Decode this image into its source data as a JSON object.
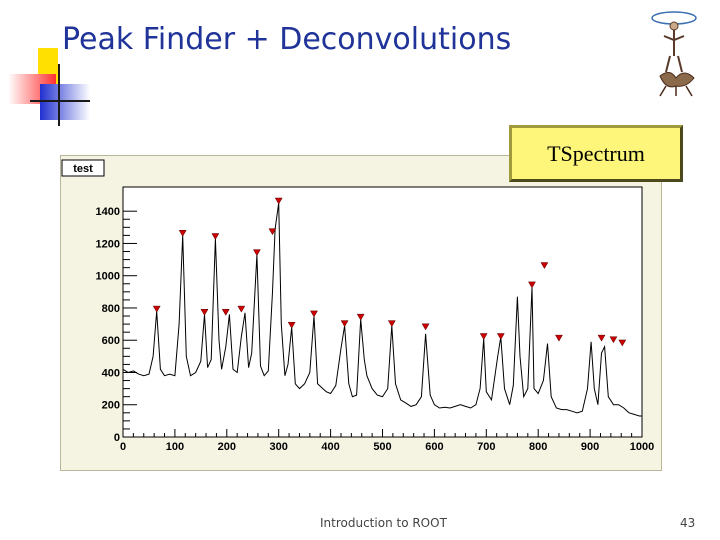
{
  "slide": {
    "title": "Peak Finder + Deconvolutions",
    "callout": "TSpectrum",
    "footer_text": "Introduction to ROOT",
    "page_number": "43"
  },
  "colors": {
    "title": "#1f3399",
    "deco_yellow": "#ffe000",
    "deco_red": "#ff2020",
    "deco_blue": "#2030d0",
    "chart_background": "#f5f4e3",
    "plot_background": "#ffffff",
    "marker": "#cc0000"
  },
  "logo": {
    "icon": "root-logo-figure-icon"
  },
  "chart_data": {
    "type": "line",
    "title": "test",
    "xlim": [
      0,
      1000
    ],
    "ylim": [
      0,
      1550
    ],
    "x_ticks": [
      "0",
      "100",
      "200",
      "300",
      "400",
      "500",
      "600",
      "700",
      "800",
      "900",
      "1000"
    ],
    "y_ticks": [
      "0",
      "200",
      "400",
      "600",
      "800",
      "1000",
      "1200",
      "1400"
    ],
    "series": [
      {
        "points": [
          [
            0,
            420
          ],
          [
            10,
            400
          ],
          [
            20,
            410
          ],
          [
            30,
            390
          ],
          [
            40,
            380
          ],
          [
            50,
            390
          ],
          [
            58,
            500
          ],
          [
            65,
            780
          ],
          [
            72,
            420
          ],
          [
            80,
            380
          ],
          [
            90,
            390
          ],
          [
            100,
            380
          ],
          [
            108,
            700
          ],
          [
            115,
            1250
          ],
          [
            122,
            500
          ],
          [
            130,
            380
          ],
          [
            140,
            400
          ],
          [
            150,
            470
          ],
          [
            157,
            760
          ],
          [
            163,
            430
          ],
          [
            170,
            480
          ],
          [
            178,
            1230
          ],
          [
            185,
            600
          ],
          [
            190,
            420
          ],
          [
            198,
            560
          ],
          [
            205,
            760
          ],
          [
            212,
            420
          ],
          [
            220,
            400
          ],
          [
            228,
            620
          ],
          [
            235,
            770
          ],
          [
            242,
            430
          ],
          [
            248,
            520
          ],
          [
            258,
            1130
          ],
          [
            265,
            440
          ],
          [
            272,
            380
          ],
          [
            280,
            410
          ],
          [
            288,
            900
          ],
          [
            293,
            1290
          ],
          [
            300,
            1450
          ],
          [
            305,
            700
          ],
          [
            312,
            380
          ],
          [
            318,
            450
          ],
          [
            325,
            680
          ],
          [
            332,
            330
          ],
          [
            340,
            300
          ],
          [
            350,
            330
          ],
          [
            360,
            400
          ],
          [
            368,
            750
          ],
          [
            375,
            330
          ],
          [
            385,
            300
          ],
          [
            392,
            280
          ],
          [
            400,
            270
          ],
          [
            410,
            320
          ],
          [
            420,
            550
          ],
          [
            427,
            690
          ],
          [
            435,
            330
          ],
          [
            442,
            250
          ],
          [
            450,
            260
          ],
          [
            458,
            730
          ],
          [
            465,
            480
          ],
          [
            470,
            380
          ],
          [
            480,
            300
          ],
          [
            490,
            260
          ],
          [
            500,
            250
          ],
          [
            510,
            300
          ],
          [
            518,
            690
          ],
          [
            525,
            330
          ],
          [
            535,
            230
          ],
          [
            545,
            210
          ],
          [
            555,
            190
          ],
          [
            565,
            200
          ],
          [
            575,
            250
          ],
          [
            583,
            640
          ],
          [
            592,
            260
          ],
          [
            600,
            200
          ],
          [
            610,
            180
          ],
          [
            620,
            185
          ],
          [
            630,
            180
          ],
          [
            640,
            190
          ],
          [
            650,
            200
          ],
          [
            660,
            190
          ],
          [
            670,
            180
          ],
          [
            680,
            200
          ],
          [
            688,
            300
          ],
          [
            695,
            610
          ],
          [
            700,
            280
          ],
          [
            710,
            230
          ],
          [
            722,
            500
          ],
          [
            728,
            620
          ],
          [
            735,
            300
          ],
          [
            745,
            200
          ],
          [
            752,
            320
          ],
          [
            760,
            870
          ],
          [
            765,
            500
          ],
          [
            772,
            250
          ],
          [
            780,
            300
          ],
          [
            788,
            930
          ],
          [
            792,
            300
          ],
          [
            800,
            270
          ],
          [
            810,
            350
          ],
          [
            818,
            580
          ],
          [
            825,
            250
          ],
          [
            835,
            180
          ],
          [
            845,
            170
          ],
          [
            855,
            170
          ],
          [
            865,
            160
          ],
          [
            875,
            150
          ],
          [
            885,
            160
          ],
          [
            895,
            300
          ],
          [
            902,
            590
          ],
          [
            908,
            300
          ],
          [
            915,
            200
          ],
          [
            922,
            520
          ],
          [
            928,
            560
          ],
          [
            935,
            250
          ],
          [
            945,
            200
          ],
          [
            955,
            200
          ],
          [
            965,
            180
          ],
          [
            975,
            150
          ],
          [
            985,
            140
          ],
          [
            995,
            130
          ],
          [
            1000,
            130
          ]
        ]
      }
    ],
    "peaks": [
      [
        65,
        790
      ],
      [
        115,
        1260
      ],
      [
        157,
        770
      ],
      [
        178,
        1240
      ],
      [
        198,
        770
      ],
      [
        228,
        790
      ],
      [
        258,
        1140
      ],
      [
        288,
        1270
      ],
      [
        300,
        1460
      ],
      [
        325,
        690
      ],
      [
        368,
        760
      ],
      [
        427,
        700
      ],
      [
        458,
        740
      ],
      [
        518,
        700
      ],
      [
        583,
        680
      ],
      [
        695,
        620
      ],
      [
        728,
        620
      ],
      [
        788,
        940
      ],
      [
        812,
        1060
      ],
      [
        840,
        610
      ],
      [
        922,
        610
      ],
      [
        945,
        600
      ],
      [
        962,
        580
      ]
    ]
  }
}
